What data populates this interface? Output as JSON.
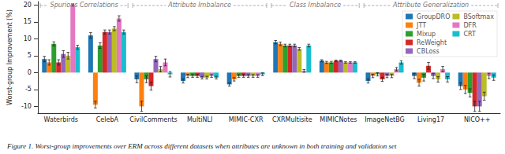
{
  "chart_data": {
    "type": "bar",
    "title": "Figure 1. Worst-group improvements over ERM across different datasets when attributes are unknown in both training and validation set",
    "y_label": "Worst-group Improvement (%)",
    "categories": [
      "Waterbirds",
      "CelebA",
      "CivilComments",
      "MultiNLI",
      "MIMIC-CXR",
      "CXRMultisite",
      "MIMICNotes",
      "ImageNetBG",
      "Living17",
      "NICO++"
    ],
    "groups": [
      {
        "label": "Spurious Correlations",
        "categories": [
          "Waterbirds",
          "CelebA"
        ]
      },
      {
        "label": "Attribute Imbalance",
        "categories": [
          "CivilComments",
          "MultiNLI",
          "MIMIC-CXR"
        ]
      },
      {
        "label": "Class Imbalance",
        "categories": [
          "CXRMultisite",
          "MIMICNotes"
        ]
      },
      {
        "label": "Attribute Generalization",
        "categories": [
          "ImageNetBG",
          "Living17",
          "NICO++"
        ]
      }
    ],
    "series": [
      {
        "name": "GroupDRO",
        "color": "#1f77b4",
        "values": [
          4,
          11,
          -2,
          -2.5,
          -3.5,
          9,
          3.5,
          -2.5,
          -1,
          -4
        ],
        "errors": [
          0.8,
          0.8,
          1,
          0.6,
          0.5,
          0.5,
          0.3,
          0.6,
          0.8,
          1
        ]
      },
      {
        "name": "JTT",
        "color": "#ff7f0e",
        "values": [
          3,
          -9.5,
          -10,
          -1,
          -2,
          8.5,
          3,
          -1,
          -3,
          -5
        ],
        "errors": [
          0.8,
          1,
          1.5,
          0.5,
          0.5,
          0.5,
          0.3,
          0.5,
          1,
          1.2
        ]
      },
      {
        "name": "Mixup",
        "color": "#2ca02c",
        "values": [
          8.5,
          8,
          -2,
          -1,
          -1,
          8,
          3,
          -0.5,
          -1.5,
          -6
        ],
        "errors": [
          0.6,
          0.8,
          1,
          0.4,
          0.4,
          0.4,
          0.3,
          0.5,
          1,
          1.2
        ]
      },
      {
        "name": "ReWeight",
        "color": "#d62728",
        "values": [
          3,
          12,
          -4,
          -1,
          -1,
          8,
          3.5,
          -2,
          2,
          -10
        ],
        "errors": [
          0.8,
          0.6,
          1.2,
          0.4,
          0.4,
          0.4,
          0.2,
          0.6,
          1,
          1.5
        ]
      },
      {
        "name": "CBLoss",
        "color": "#9467bd",
        "values": [
          5.5,
          12,
          4,
          -1.5,
          -1,
          8,
          3.5,
          -1,
          -1,
          -10
        ],
        "errors": [
          1,
          0.6,
          0.8,
          0.4,
          0.4,
          0.4,
          0.2,
          0.5,
          0.8,
          1.5
        ]
      },
      {
        "name": "BSoftmax",
        "color": "#bcbd22",
        "values": [
          5,
          13,
          1,
          -1.5,
          -1,
          7,
          3,
          -1,
          -2,
          -7
        ],
        "errors": [
          1,
          0.6,
          0.8,
          0.4,
          0.4,
          0.4,
          0.2,
          0.5,
          0.8,
          1.2
        ]
      },
      {
        "name": "DFR",
        "color": "#e377c2",
        "values": [
          20,
          16,
          3,
          -1,
          -1,
          0.5,
          3,
          1,
          1,
          -1
        ],
        "errors": [
          0.3,
          0.8,
          1,
          0.4,
          0.4,
          0.4,
          0.2,
          0.5,
          0.8,
          0.8
        ]
      },
      {
        "name": "CRT",
        "color": "#17becf",
        "values": [
          7.5,
          12,
          -0.5,
          -1.5,
          -0.5,
          8,
          3,
          3,
          -2,
          -1.5
        ],
        "errors": [
          0.6,
          0.6,
          0.8,
          0.4,
          0.4,
          0.4,
          0.2,
          0.5,
          0.8,
          0.8
        ]
      }
    ],
    "ylim": [
      -12,
      21
    ],
    "yticks": [
      -10,
      -5,
      0,
      5,
      10,
      15,
      20
    ],
    "grid": false,
    "legend": "upper right"
  }
}
